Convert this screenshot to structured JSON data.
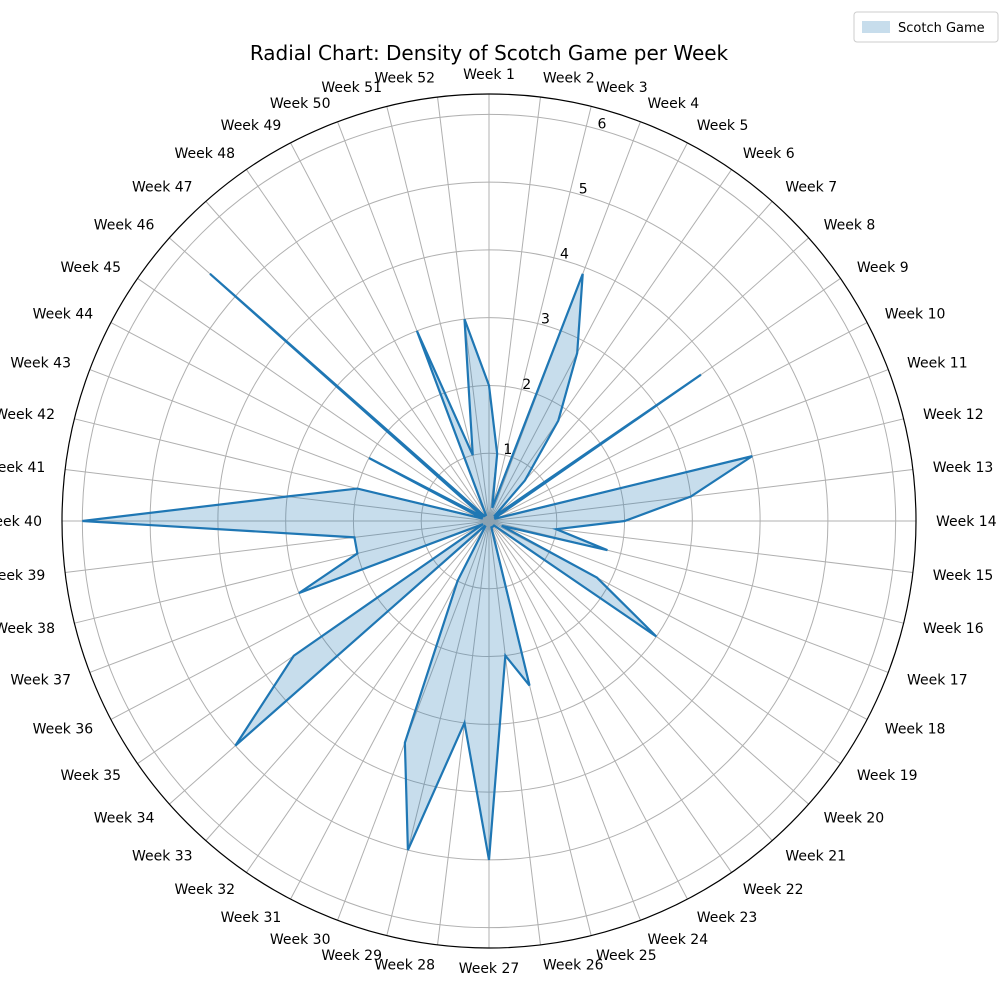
{
  "chart_data": {
    "type": "radar",
    "title": "Radial Chart: Density of Scotch Game per Week",
    "categories": [
      "Week 1",
      "Week 2",
      "Week 3",
      "Week 4",
      "Week 5",
      "Week 6",
      "Week 7",
      "Week 8",
      "Week 9",
      "Week 10",
      "Week 11",
      "Week 12",
      "Week 13",
      "Week 14",
      "Week 15",
      "Week 16",
      "Week 17",
      "Week 18",
      "Week 19",
      "Week 20",
      "Week 21",
      "Week 22",
      "Week 23",
      "Week 24",
      "Week 25",
      "Week 26",
      "Week 27",
      "Week 28",
      "Week 29",
      "Week 30",
      "Week 31",
      "Week 32",
      "Week 33",
      "Week 34",
      "Week 35",
      "Week 36",
      "Week 37",
      "Week 38",
      "Week 39",
      "Week 40",
      "Week 41",
      "Week 42",
      "Week 43",
      "Week 44",
      "Week 45",
      "Week 46",
      "Week 47",
      "Week 48",
      "Week 49",
      "Week 50",
      "Week 51",
      "Week 52"
    ],
    "series": [
      {
        "name": "Scotch Game",
        "color": "#1f77b4",
        "values": [
          2.0,
          1.0,
          0.2,
          3.9,
          2.8,
          1.8,
          0.8,
          0.1,
          3.8,
          0.1,
          0.1,
          4.0,
          3.0,
          2.0,
          1.0,
          1.8,
          0.2,
          1.8,
          3.0,
          0.1,
          0.1,
          0.1,
          0.1,
          0.1,
          2.5,
          2.0,
          5.0,
          3.0,
          5.0,
          3.5,
          1.0,
          0.1,
          0.1,
          5.0,
          3.5,
          0.1,
          3.0,
          2.0,
          2.0,
          6.0,
          3.0,
          2.0,
          0.1,
          2.0,
          0.1,
          5.5,
          0.1,
          0.1,
          0.1,
          3.0,
          1.0,
          3.0
        ]
      }
    ],
    "r_ticks": [
      1,
      2,
      3,
      4,
      5,
      6
    ],
    "r_max": 6.3,
    "grid": true,
    "legend_position": "top-right"
  }
}
